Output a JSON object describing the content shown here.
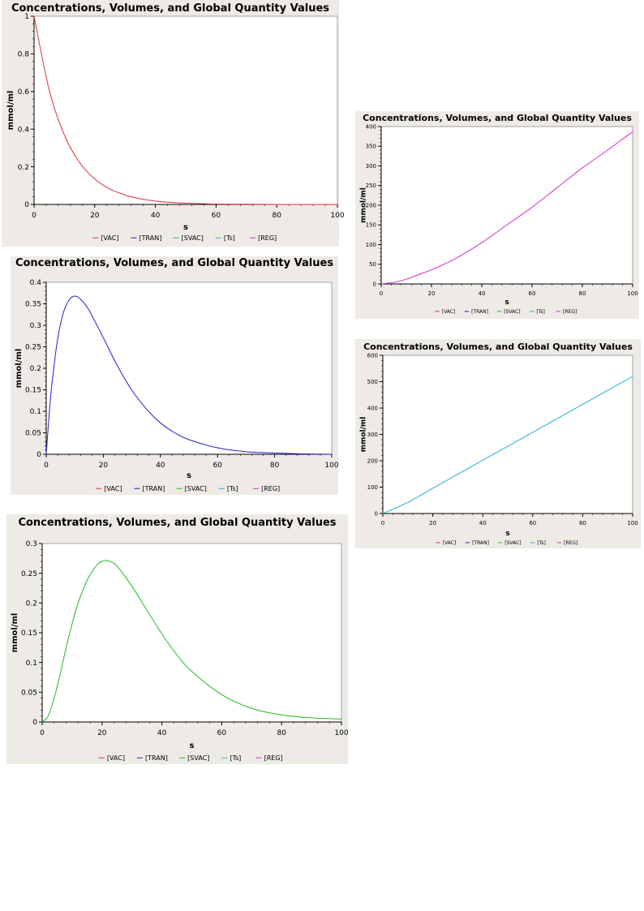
{
  "legend": [
    {
      "label": "[VAC]",
      "color": "#e0303a"
    },
    {
      "label": "[TRAN]",
      "color": "#2020cc"
    },
    {
      "label": "[SVAC]",
      "color": "#22bb22"
    },
    {
      "label": "[Ts]",
      "color": "#20b0d0"
    },
    {
      "label": "[REG]",
      "color": "#d030d0"
    }
  ],
  "chart_data": [
    {
      "type": "line",
      "title": "Concentrations, Volumes, and Global Quantity Values",
      "xlabel": "s",
      "ylabel": "mmol/ml",
      "xlim": [
        0,
        100
      ],
      "ylim": [
        0,
        1
      ],
      "xticks": [
        0,
        20,
        40,
        60,
        80,
        100
      ],
      "yticks": [
        0,
        0.2,
        0.4,
        0.6,
        0.8,
        1
      ],
      "series": [
        {
          "name": "[VAC]",
          "color": "#e0303a",
          "x": [
            0,
            5,
            10,
            15,
            20,
            25,
            30,
            35,
            40,
            45,
            50,
            60,
            70,
            80,
            90,
            100
          ],
          "y": [
            1,
            0.607,
            0.368,
            0.223,
            0.135,
            0.082,
            0.05,
            0.03,
            0.018,
            0.011,
            0.007,
            0.002,
            0.001,
            0,
            0,
            0
          ]
        }
      ]
    },
    {
      "type": "line",
      "title": "Concentrations, Volumes, and Global Quantity Values",
      "xlabel": "s",
      "ylabel": "mmol/ml",
      "xlim": [
        0,
        100
      ],
      "ylim": [
        0,
        400
      ],
      "xticks": [
        0,
        20,
        40,
        60,
        80,
        100
      ],
      "yticks": [
        0,
        50,
        100,
        150,
        200,
        250,
        300,
        350,
        400
      ],
      "series": [
        {
          "name": "[REG]",
          "color": "#d030d0",
          "x": [
            0,
            5,
            10,
            15,
            20,
            25,
            30,
            40,
            50,
            60,
            70,
            80,
            90,
            100
          ],
          "y": [
            0,
            4,
            12,
            24,
            36,
            50,
            66,
            105,
            150,
            195,
            245,
            295,
            340,
            387
          ]
        }
      ]
    },
    {
      "type": "line",
      "title": "Concentrations, Volumes, and Global Quantity Values",
      "xlabel": "s",
      "ylabel": "mmol/ml",
      "xlim": [
        0,
        100
      ],
      "ylim": [
        0,
        0.4
      ],
      "xticks": [
        0,
        20,
        40,
        60,
        80,
        100
      ],
      "yticks": [
        0,
        0.05,
        0.1,
        0.15,
        0.2,
        0.25,
        0.3,
        0.35,
        0.4
      ],
      "series": [
        {
          "name": "[TRAN]",
          "color": "#2020cc",
          "x": [
            0,
            1,
            2,
            4,
            6,
            8,
            10,
            12,
            15,
            20,
            25,
            30,
            35,
            40,
            45,
            50,
            60,
            70,
            80,
            90,
            100
          ],
          "y": [
            0,
            0.09,
            0.164,
            0.268,
            0.329,
            0.359,
            0.368,
            0.361,
            0.335,
            0.271,
            0.205,
            0.149,
            0.106,
            0.073,
            0.05,
            0.034,
            0.015,
            0.006,
            0.003,
            0.001,
            0
          ]
        }
      ]
    },
    {
      "type": "line",
      "title": "Concentrations, Volumes, and Global Quantity Values",
      "xlabel": "s",
      "ylabel": "mmol/ml",
      "xlim": [
        0,
        100
      ],
      "ylim": [
        0,
        600
      ],
      "xticks": [
        0,
        20,
        40,
        60,
        80,
        100
      ],
      "yticks": [
        0,
        100,
        200,
        300,
        400,
        500,
        600
      ],
      "series": [
        {
          "name": "[Ts]",
          "color": "#20b0d0",
          "x": [
            0,
            10,
            20,
            30,
            40,
            50,
            60,
            70,
            80,
            90,
            100
          ],
          "y": [
            0,
            42,
            96,
            149,
            202,
            255,
            308,
            361,
            414,
            467,
            520
          ]
        }
      ]
    },
    {
      "type": "line",
      "title": "Concentrations, Volumes, and Global Quantity Values",
      "xlabel": "s",
      "ylabel": "mmol/ml",
      "xlim": [
        0,
        100
      ],
      "ylim": [
        0,
        0.3
      ],
      "xticks": [
        0,
        20,
        40,
        60,
        80,
        100
      ],
      "yticks": [
        0,
        0.05,
        0.1,
        0.15,
        0.2,
        0.25,
        0.3
      ],
      "series": [
        {
          "name": "[SVAC]",
          "color": "#22bb22",
          "x": [
            0,
            1,
            2,
            4,
            6,
            8,
            10,
            12,
            15,
            18,
            20,
            22,
            25,
            30,
            35,
            40,
            45,
            50,
            60,
            70,
            80,
            90,
            100
          ],
          "y": [
            0,
            0.004,
            0.01,
            0.04,
            0.08,
            0.125,
            0.165,
            0.2,
            0.238,
            0.262,
            0.27,
            0.271,
            0.262,
            0.228,
            0.188,
            0.148,
            0.113,
            0.085,
            0.046,
            0.023,
            0.012,
            0.007,
            0.005
          ]
        }
      ]
    }
  ]
}
